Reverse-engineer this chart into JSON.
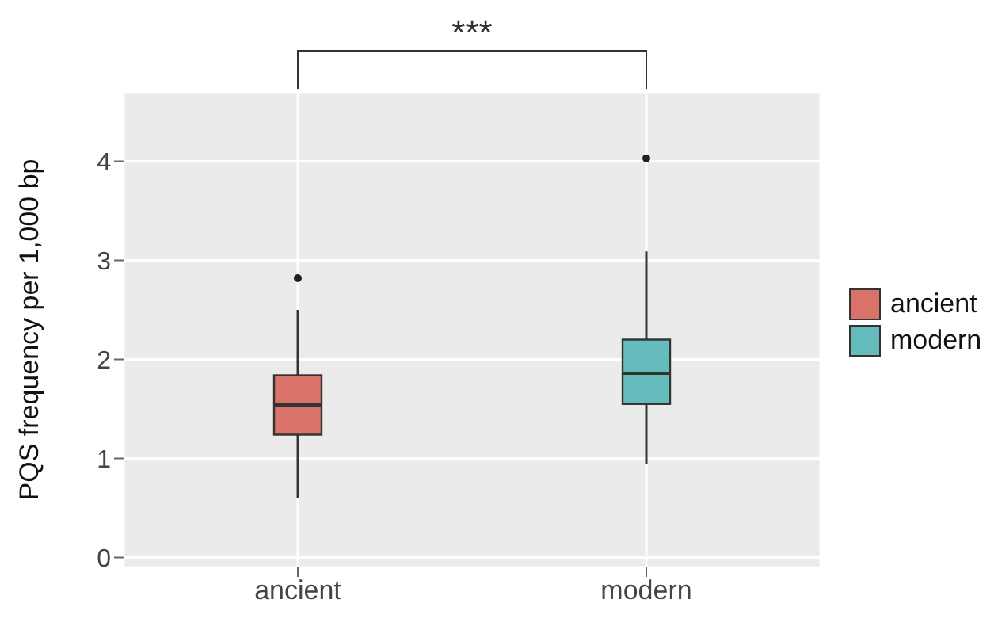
{
  "chart_data": {
    "type": "box",
    "ylabel": "PQS frequency per 1,000 bp",
    "categories": [
      "ancient",
      "modern"
    ],
    "series": [
      {
        "name": "ancient",
        "color": "#d9736a",
        "boxes": [
          {
            "low": 0.6,
            "q1": 1.24,
            "median": 1.54,
            "q3": 1.84,
            "high": 2.5,
            "outliers": [
              2.82
            ]
          },
          null
        ]
      },
      {
        "name": "modern",
        "color": "#66bcbd",
        "boxes": [
          null,
          {
            "low": 0.94,
            "q1": 1.55,
            "median": 1.86,
            "q3": 2.2,
            "high": 3.09,
            "outliers": [
              4.03
            ]
          }
        ]
      }
    ],
    "ylim": [
      -0.1,
      4.7
    ],
    "yticks": [
      0,
      1,
      2,
      3,
      4
    ],
    "grid": true,
    "legend": "right",
    "annotations": [
      "***"
    ]
  }
}
